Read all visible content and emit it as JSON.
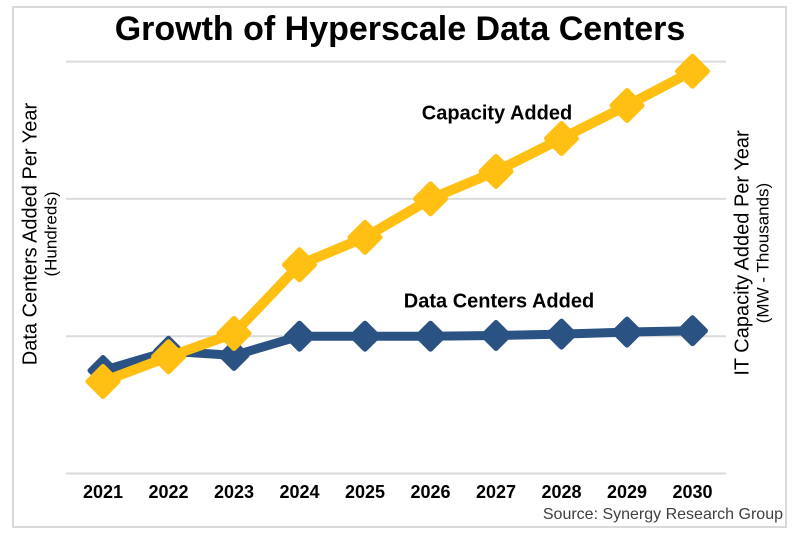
{
  "chart": {
    "title": "Growth of Hyperscale Data Centers",
    "axes": {
      "left": {
        "label": "Data Centers Added Per Year",
        "units": "(Hundreds)"
      },
      "right": {
        "label": "IT Capacity Added Per Year",
        "units": "(MW - Thousands)"
      }
    },
    "source": "Source: Synergy Research Group"
  },
  "chart_data": {
    "type": "line",
    "title": "Growth of Hyperscale Data Centers",
    "categories": [
      "2021",
      "2022",
      "2023",
      "2024",
      "2025",
      "2026",
      "2027",
      "2028",
      "2029",
      "2030"
    ],
    "series": [
      {
        "name": "Capacity Added",
        "axis": "right",
        "units": "MW - Thousands",
        "color": "#FFC013",
        "marker": "diamond",
        "values": [
          0.67,
          0.85,
          1.02,
          1.52,
          1.72,
          2.0,
          2.2,
          2.44,
          2.68,
          2.93
        ]
      },
      {
        "name": "Data Centers Added",
        "axis": "left",
        "units": "Hundreds",
        "color": "#2A5283",
        "marker": "diamond",
        "values": [
          0.75,
          0.89,
          0.86,
          1.0,
          1.0,
          1.0,
          1.005,
          1.015,
          1.03,
          1.04
        ]
      }
    ],
    "xlabel": "",
    "ylabel_left": "Data Centers Added Per Year (Hundreds)",
    "ylabel_right": "IT Capacity Added Per Year (MW - Thousands)",
    "ylim": [
      0,
      3
    ],
    "gridlines": [
      0,
      1,
      2,
      3
    ],
    "grid": "horizontal-light",
    "legend": "inline-annotations",
    "source": "Source: Synergy Research Group"
  },
  "colors": {
    "grid": "#dbdbdb",
    "frame": "#d9d9d9",
    "title_text": "#000000",
    "source_text": "#404040"
  }
}
